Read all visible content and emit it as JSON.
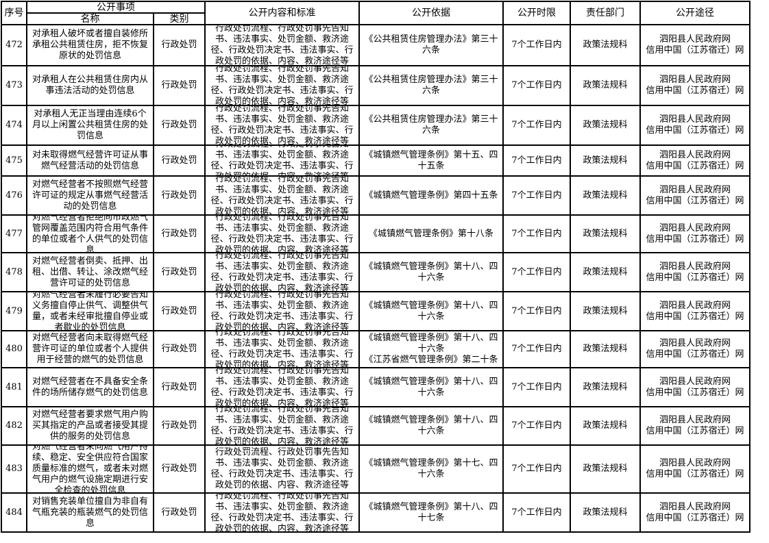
{
  "headers": {
    "seq": "序号",
    "item_group": "公开事项",
    "name": "名称",
    "category": "类别",
    "content": "公开内容和标准",
    "basis": "公开依据",
    "deadline": "公开时限",
    "department": "责任部门",
    "channel": "公开途径"
  },
  "rows": [
    {
      "seq": "472",
      "name": "对承租人破坏或者擅自装修所承租公共租赁住房，拒不恢复原状的处罚信息",
      "category": "行政处罚",
      "content": "行政处罚流程、行政处罚事先告知书、违法事实、处罚金额、救济途径、行政处罚决定书、违法事实、行政处罚的依据、内容、救济途径等",
      "basis": "《公共租赁住房管理办法》第三十六条",
      "deadline": "7个工作日内",
      "department": "政策法规科",
      "channel": "泗阳县人民政府网\n信用中国（江苏宿迁）网"
    },
    {
      "seq": "473",
      "name": "对承租人在公共租赁住房内从事违法活动的处罚信息",
      "category": "行政处罚",
      "content": "行政处罚流程、行政处罚事先告知书、违法事实、处罚金额、救济途径、行政处罚决定书、违法事实、行政处罚的依据、内容、救济途径等",
      "basis": "《公共租赁住房管理办法》第三十六条",
      "deadline": "7个工作日内",
      "department": "政策法规科",
      "channel": "泗阳县人民政府网\n信用中国（江苏宿迁）网"
    },
    {
      "seq": "474",
      "name": "对承租人无正当理由连续6个月以上闲置公共租赁住房的处罚信息",
      "category": "行政处罚",
      "content": "行政处罚流程、行政处罚事先告知书、违法事实、处罚金额、救济途径、行政处罚决定书、违法事实、行政处罚的依据、内容、救济途径等",
      "basis": "《公共租赁住房管理办法》第三十六条",
      "deadline": "7个工作日内",
      "department": "政策法规科",
      "channel": "泗阳县人民政府网\n信用中国（江苏宿迁）网"
    },
    {
      "seq": "475",
      "name": "对未取得燃气经营许可证从事燃气经营活动的处罚信息",
      "category": "行政处罚",
      "content": "行政处罚流程、行政处罚事先告知书、违法事实、处罚金额、救济途径、行政处罚决定书、违法事实、行政处罚的依据、内容、救济途径等",
      "basis": "《城镇燃气管理条例》第十五、四十五条",
      "deadline": "7个工作日内",
      "department": "政策法规科",
      "channel": "泗阳县人民政府网\n信用中国（江苏宿迁）网"
    },
    {
      "seq": "476",
      "name": "对燃气经营者不按照燃气经营许可证的规定从事燃气经营活动的处罚信息",
      "category": "行政处罚",
      "content": "行政处罚流程、行政处罚事先告知书、违法事实、处罚金额、救济途径、行政处罚决定书、违法事实、行政处罚的依据、内容、救济途径等",
      "basis": "《城镇燃气管理条例》第四十五条",
      "deadline": "7个工作日内",
      "department": "政策法规科",
      "channel": "泗阳县人民政府网\n信用中国（江苏宿迁）网"
    },
    {
      "seq": "477",
      "name": "对燃气经营者拒绝向市政燃气管网覆盖范围内符合用气条件的单位或者个人供气的处罚信息",
      "category": "行政处罚",
      "content": "行政处罚流程、行政处罚事先告知书、违法事实、处罚金额、救济途径、行政处罚决定书、违法事实、行政处罚的依据、内容、救济途径等",
      "basis": "《城镇燃气管理条例》第十八条",
      "deadline": "7个工作日内",
      "department": "政策法规科",
      "channel": "泗阳县人民政府网\n信用中国（江苏宿迁）网"
    },
    {
      "seq": "478",
      "name": "对燃气经营者倒卖、抵押、出租、出借、转让、涂改燃气经营许可证的处罚信息",
      "category": "行政处罚",
      "content": "行政处罚流程、行政处罚事先告知书、违法事实、处罚金额、救济途径、行政处罚决定书、违法事实、行政处罚的依据、内容、救济途径等",
      "basis": "《城镇燃气管理条例》第十八、四十六条",
      "deadline": "7个工作日内",
      "department": "政策法规科",
      "channel": "泗阳县人民政府网\n信用中国（江苏宿迁）网"
    },
    {
      "seq": "479",
      "name": "对燃气经营者未履行必要告知义务擅自停止供气、调整供气量，或者未经审批擅自停业或者歇业的处罚信息",
      "category": "行政处罚",
      "content": "行政处罚流程、行政处罚事先告知书、违法事实、处罚金额、救济途径、行政处罚决定书、违法事实、行政处罚的依据、内容、救济途径等",
      "basis": "《城镇燃气管理条例》第十八、四十六条",
      "deadline": "7个工作日内",
      "department": "政策法规科",
      "channel": "泗阳县人民政府网\n信用中国（江苏宿迁）网"
    },
    {
      "seq": "480",
      "name": "对燃气经营者向未取得燃气经营许可证的单位或者个人提供用于经营的燃气的处罚信息",
      "category": "行政处罚",
      "content": "行政处罚流程、行政处罚事先告知书、违法事实、处罚金额、救济途径、行政处罚决定书、违法事实、行政处罚的依据、内容、救济途径等",
      "basis": "《城镇燃气管理条例》第十八、四十六条\n《江苏省燃气管理条例》第二十条",
      "deadline": "7个工作日内",
      "department": "政策法规科",
      "channel": "泗阳县人民政府网\n信用中国（江苏宿迁）网"
    },
    {
      "seq": "481",
      "name": "对燃气经营者在不具备安全条件的场所储存燃气的处罚信息",
      "category": "行政处罚",
      "content": "行政处罚流程、行政处罚事先告知书、违法事实、处罚金额、救济途径、行政处罚决定书、违法事实、行政处罚的依据、内容、救济途径等",
      "basis": "《城镇燃气管理条例》第十八、四十六条",
      "deadline": "7个工作日内",
      "department": "政策法规科",
      "channel": "泗阳县人民政府网\n信用中国（江苏宿迁）网"
    },
    {
      "seq": "482",
      "name": "对燃气经营者要求燃气用户购买其指定的产品或者接受其提供的服务的处罚信息",
      "category": "行政处罚",
      "content": "行政处罚流程、行政处罚事先告知书、违法事实、处罚金额、救济途径、行政处罚决定书、违法事实、行政处罚的依据、内容、救济途径等",
      "basis": "《城镇燃气管理条例》第十八、四十六条",
      "deadline": "7个工作日内",
      "department": "政策法规科",
      "channel": "泗阳县人民政府网\n信用中国（江苏宿迁）网"
    },
    {
      "seq": "483",
      "name": "对燃气经营者未向燃气用户持续、稳定、安全供应符合国家质量标准的燃气，或者未对燃气用户的燃气设施定期进行安全检查的处罚信息",
      "category": "行政处罚",
      "content": "行政处罚流程、行政处罚事先告知书、违法事实、处罚金额、救济途径、行政处罚决定书、违法事实、行政处罚的依据、内容、救济途径等",
      "basis": "《城镇燃气管理条例》第十七、四十六条",
      "deadline": "7个工作日内",
      "department": "政策法规科",
      "channel": "泗阳县人民政府网\n信用中国（江苏宿迁）网"
    },
    {
      "seq": "484",
      "name": "对销售充装单位擅自为非自有气瓶充装的瓶装燃气的处罚信息",
      "category": "行政处罚",
      "content": "行政处罚流程、行政处罚事先告知书、违法事实、处罚金额、救济途径、行政处罚决定书、违法事实、行政处罚的依据、内容、救济途径等",
      "basis": "《城镇燃气管理条例》第十八、四十七条",
      "deadline": "7个工作日内",
      "department": "政策法规科",
      "channel": "泗阳县人民政府网\n信用中国（江苏宿迁）网"
    }
  ]
}
